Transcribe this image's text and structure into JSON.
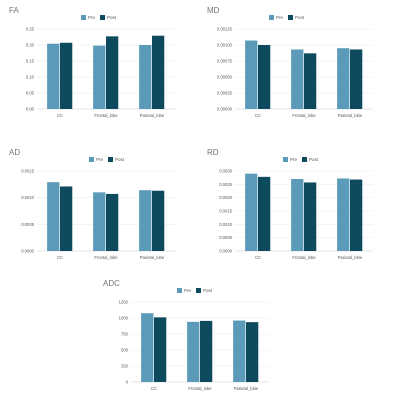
{
  "colors": {
    "pre": "#5b9ab8",
    "post": "#0d4a5e",
    "axis": "#cccccc",
    "grid": "#e8e8e8",
    "text": "#555555"
  },
  "legend": {
    "pre": "Pre",
    "post": "Post"
  },
  "chart_data": [
    {
      "type": "bar",
      "title": "FA",
      "categories": [
        "CC",
        "Frontal_lobe",
        "Parietal_lobe"
      ],
      "series": [
        {
          "name": "Pre",
          "values": [
            0.204,
            0.198,
            0.2
          ]
        },
        {
          "name": "Post",
          "values": [
            0.207,
            0.227,
            0.229
          ]
        }
      ],
      "ylim": [
        0,
        0.25
      ],
      "yticks": [
        "0.00",
        "0.05",
        "0.10",
        "0.15",
        "0.20",
        "0.25"
      ],
      "legend_position": "top"
    },
    {
      "type": "bar",
      "title": "MD",
      "categories": [
        "CC",
        "Frontal_lobe",
        "Parietal_lobe"
      ],
      "series": [
        {
          "name": "Pre",
          "values": [
            0.00107,
            0.00093,
            0.00095
          ]
        },
        {
          "name": "Post",
          "values": [
            0.001,
            0.00087,
            0.00093
          ]
        }
      ],
      "ylim": [
        0,
        0.00125
      ],
      "yticks": [
        "0.00000",
        "0.00025",
        "0.00050",
        "0.00075",
        "0.00100",
        "0.00125"
      ],
      "legend_position": "top"
    },
    {
      "type": "bar",
      "title": "AD",
      "categories": [
        "CC",
        "Frontal_lobe",
        "Parietal_lobe"
      ],
      "series": [
        {
          "name": "Pre",
          "values": [
            0.00129,
            0.0011,
            0.00114
          ]
        },
        {
          "name": "Post",
          "values": [
            0.00121,
            0.00107,
            0.00113
          ]
        }
      ],
      "ylim": [
        0,
        0.0015
      ],
      "yticks": [
        "0.0000",
        "0.0005",
        "0.0010",
        "0.0015"
      ],
      "legend_position": "top"
    },
    {
      "type": "bar",
      "title": "RD",
      "categories": [
        "CC",
        "Frontal_lobe",
        "Parietal_lobe"
      ],
      "series": [
        {
          "name": "Pre",
          "values": [
            0.0029,
            0.0027,
            0.00272
          ]
        },
        {
          "name": "Post",
          "values": [
            0.00278,
            0.00257,
            0.00268
          ]
        }
      ],
      "ylim": [
        0,
        0.003
      ],
      "yticks": [
        "0.0000",
        "0.0005",
        "0.0010",
        "0.0015",
        "0.0020",
        "0.0025",
        "0.0030"
      ],
      "legend_position": "top"
    },
    {
      "type": "bar",
      "title": "ADC",
      "categories": [
        "CC",
        "Frontal_lobe",
        "Parietal_lobe"
      ],
      "series": [
        {
          "name": "Pre",
          "values": [
            1075,
            940,
            960
          ]
        },
        {
          "name": "Post",
          "values": [
            1010,
            955,
            935
          ]
        }
      ],
      "ylim": [
        0,
        1250
      ],
      "yticks": [
        "0",
        "250",
        "500",
        "750",
        "1000",
        "1250"
      ],
      "legend_position": "top"
    }
  ]
}
